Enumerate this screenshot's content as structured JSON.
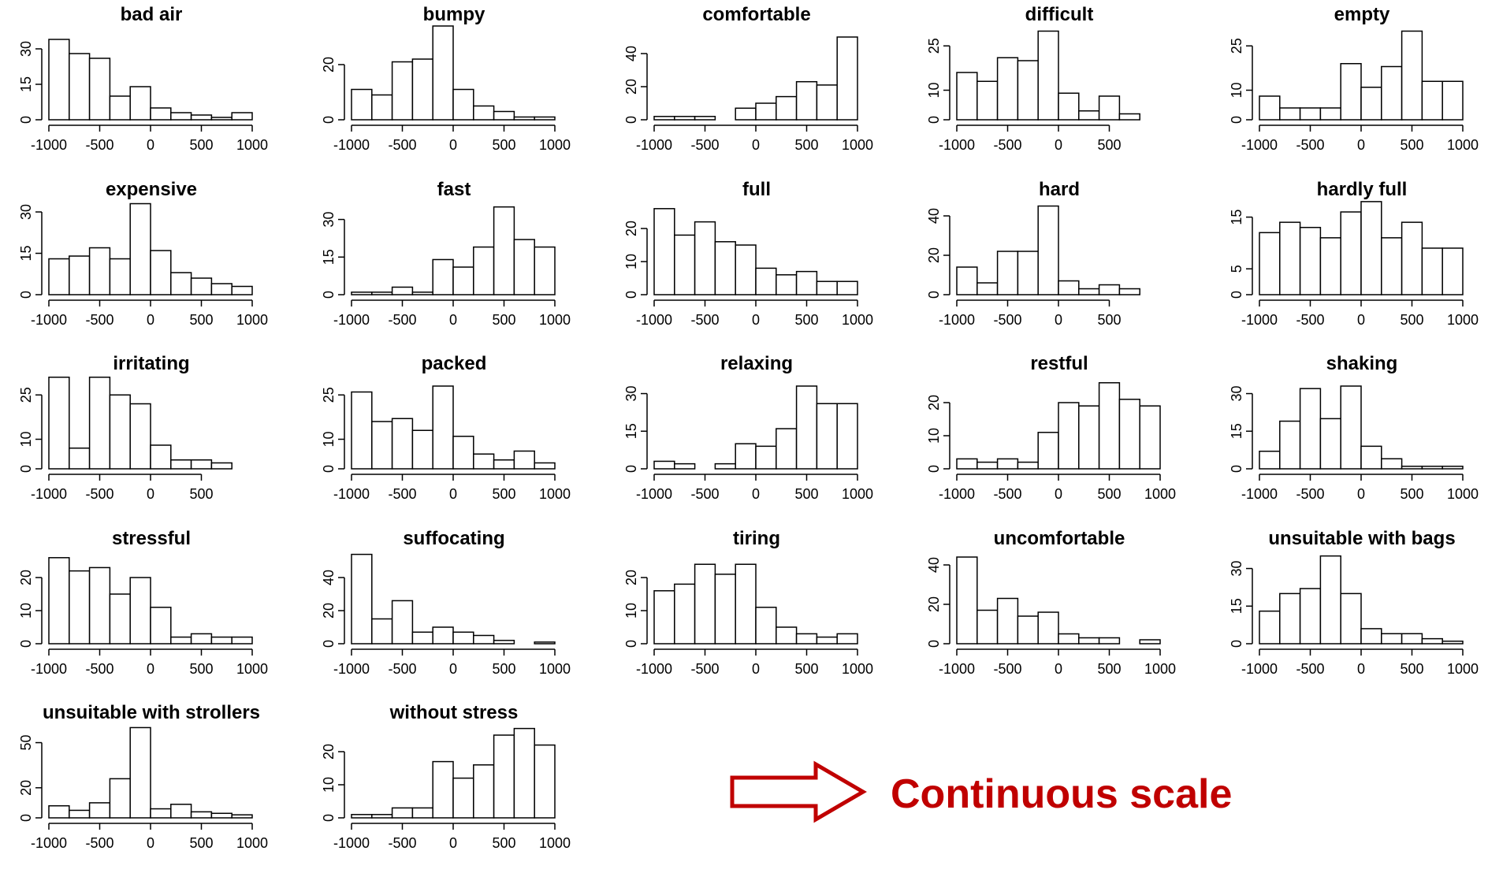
{
  "annotation": {
    "text": "Continuous scale",
    "color": "#c00000"
  },
  "chart_data": [
    {
      "type": "bar",
      "title": "bad air",
      "bin_edges": [
        -1000,
        -800,
        -600,
        -400,
        -200,
        0,
        200,
        400,
        600,
        800,
        1000
      ],
      "values": [
        34,
        28,
        26,
        10,
        14,
        5,
        3,
        2,
        1,
        3
      ],
      "ylim": [
        0,
        35
      ],
      "yticks": [
        0,
        15,
        30
      ],
      "xticks": [
        -1000,
        -500,
        0,
        500,
        1000
      ]
    },
    {
      "type": "bar",
      "title": "bumpy",
      "bin_edges": [
        -1000,
        -800,
        -600,
        -400,
        -200,
        0,
        200,
        400,
        600,
        800,
        1000
      ],
      "values": [
        11,
        9,
        21,
        22,
        34,
        11,
        5,
        3,
        1,
        1
      ],
      "ylim": [
        0,
        30
      ],
      "yticks": [
        0,
        20
      ],
      "xticks": [
        -1000,
        -500,
        0,
        500,
        1000
      ]
    },
    {
      "type": "bar",
      "title": "comfortable",
      "bin_edges": [
        -1000,
        -800,
        -600,
        -400,
        -200,
        0,
        200,
        400,
        600,
        800,
        1000
      ],
      "values": [
        2,
        2,
        2,
        0,
        7,
        10,
        14,
        23,
        21,
        50
      ],
      "ylim": [
        0,
        50
      ],
      "yticks": [
        0,
        20,
        40
      ],
      "xticks": [
        -1000,
        -500,
        0,
        500,
        1000
      ]
    },
    {
      "type": "bar",
      "title": "difficult",
      "bin_edges": [
        -1000,
        -800,
        -600,
        -400,
        -200,
        0,
        200,
        400,
        600,
        800
      ],
      "values": [
        16,
        13,
        21,
        20,
        30,
        9,
        3,
        8,
        2
      ],
      "ylim": [
        0,
        28
      ],
      "yticks": [
        0,
        10,
        25
      ],
      "xticks": [
        -1000,
        -500,
        0,
        500
      ]
    },
    {
      "type": "bar",
      "title": "empty",
      "bin_edges": [
        -1000,
        -800,
        -600,
        -400,
        -200,
        0,
        200,
        400,
        600,
        800,
        1000
      ],
      "values": [
        8,
        4,
        4,
        4,
        19,
        11,
        18,
        30,
        13,
        13
      ],
      "ylim": [
        0,
        28
      ],
      "yticks": [
        0,
        10,
        25
      ],
      "xticks": [
        -1000,
        -500,
        0,
        500,
        1000
      ]
    },
    {
      "type": "bar",
      "title": "expensive",
      "bin_edges": [
        -1000,
        -800,
        -600,
        -400,
        -200,
        0,
        200,
        400,
        600,
        800,
        1000
      ],
      "values": [
        13,
        14,
        17,
        13,
        33,
        16,
        8,
        6,
        4,
        3
      ],
      "ylim": [
        0,
        30
      ],
      "yticks": [
        0,
        15,
        30
      ],
      "xticks": [
        -1000,
        -500,
        0,
        500,
        1000
      ]
    },
    {
      "type": "bar",
      "title": "fast",
      "bin_edges": [
        -1000,
        -800,
        -600,
        -400,
        -200,
        0,
        200,
        400,
        600,
        800,
        1000
      ],
      "values": [
        1,
        1,
        3,
        1,
        14,
        11,
        19,
        35,
        22,
        19
      ],
      "ylim": [
        0,
        33
      ],
      "yticks": [
        0,
        15,
        30
      ],
      "xticks": [
        -1000,
        -500,
        0,
        500,
        1000
      ]
    },
    {
      "type": "bar",
      "title": "full",
      "bin_edges": [
        -1000,
        -800,
        -600,
        -400,
        -200,
        0,
        200,
        400,
        600,
        800,
        1000
      ],
      "values": [
        26,
        18,
        22,
        16,
        15,
        8,
        6,
        7,
        4,
        4
      ],
      "ylim": [
        0,
        25
      ],
      "yticks": [
        0,
        10,
        20
      ],
      "xticks": [
        -1000,
        -500,
        0,
        500,
        1000
      ]
    },
    {
      "type": "bar",
      "title": "hard",
      "bin_edges": [
        -1000,
        -800,
        -600,
        -400,
        -200,
        0,
        200,
        400,
        600,
        800
      ],
      "values": [
        14,
        6,
        22,
        22,
        45,
        7,
        3,
        5,
        3
      ],
      "ylim": [
        0,
        42
      ],
      "yticks": [
        0,
        20,
        40
      ],
      "xticks": [
        -1000,
        -500,
        0,
        500
      ]
    },
    {
      "type": "bar",
      "title": "hardly full",
      "bin_edges": [
        -1000,
        -800,
        -600,
        -400,
        -200,
        0,
        200,
        400,
        600,
        800,
        1000
      ],
      "values": [
        12,
        14,
        13,
        11,
        16,
        18,
        11,
        14,
        9,
        9
      ],
      "ylim": [
        0,
        16
      ],
      "yticks": [
        0,
        5,
        15
      ],
      "xticks": [
        -1000,
        -500,
        0,
        500,
        1000
      ]
    },
    {
      "type": "bar",
      "title": "irritating",
      "bin_edges": [
        -1000,
        -800,
        -600,
        -400,
        -200,
        0,
        200,
        400,
        600,
        800
      ],
      "values": [
        31,
        7,
        31,
        25,
        22,
        8,
        3,
        3,
        2
      ],
      "ylim": [
        0,
        28
      ],
      "yticks": [
        0,
        10,
        25
      ],
      "xticks": [
        -1000,
        -500,
        0,
        500
      ]
    },
    {
      "type": "bar",
      "title": "packed",
      "bin_edges": [
        -1000,
        -800,
        -600,
        -400,
        -200,
        0,
        200,
        400,
        600,
        800,
        1000
      ],
      "values": [
        26,
        16,
        17,
        13,
        28,
        11,
        5,
        3,
        6,
        2
      ],
      "ylim": [
        0,
        28
      ],
      "yticks": [
        0,
        10,
        25
      ],
      "xticks": [
        -1000,
        -500,
        0,
        500,
        1000
      ]
    },
    {
      "type": "bar",
      "title": "relaxing",
      "bin_edges": [
        -1000,
        -800,
        -600,
        -400,
        -200,
        0,
        200,
        400,
        600,
        800,
        1000
      ],
      "values": [
        3,
        2,
        0,
        2,
        10,
        9,
        16,
        33,
        26,
        26
      ],
      "ylim": [
        0,
        33
      ],
      "yticks": [
        0,
        15,
        30
      ],
      "xticks": [
        -1000,
        -500,
        0,
        500,
        1000
      ]
    },
    {
      "type": "bar",
      "title": "restful",
      "bin_edges": [
        -1000,
        -800,
        -600,
        -400,
        -200,
        0,
        200,
        400,
        600,
        800,
        1000
      ],
      "values": [
        3,
        2,
        3,
        2,
        11,
        20,
        19,
        26,
        21,
        19
      ],
      "ylim": [
        0,
        25
      ],
      "yticks": [
        0,
        10,
        20
      ],
      "xticks": [
        -1000,
        -500,
        0,
        500,
        1000
      ]
    },
    {
      "type": "bar",
      "title": "shaking",
      "bin_edges": [
        -1000,
        -800,
        -600,
        -400,
        -200,
        0,
        200,
        400,
        600,
        800,
        1000
      ],
      "values": [
        7,
        19,
        32,
        20,
        33,
        9,
        4,
        1,
        1,
        1
      ],
      "ylim": [
        0,
        33
      ],
      "yticks": [
        0,
        15,
        30
      ],
      "xticks": [
        -1000,
        -500,
        0,
        500,
        1000
      ]
    },
    {
      "type": "bar",
      "title": "stressful",
      "bin_edges": [
        -1000,
        -800,
        -600,
        -400,
        -200,
        0,
        200,
        400,
        600,
        800,
        1000
      ],
      "values": [
        26,
        22,
        23,
        15,
        20,
        11,
        2,
        3,
        2,
        2
      ],
      "ylim": [
        0,
        25
      ],
      "yticks": [
        0,
        10,
        20
      ],
      "xticks": [
        -1000,
        -500,
        0,
        500,
        1000
      ]
    },
    {
      "type": "bar",
      "title": "suffocating",
      "bin_edges": [
        -1000,
        -800,
        -600,
        -400,
        -200,
        0,
        200,
        400,
        600,
        800,
        1000
      ],
      "values": [
        54,
        15,
        26,
        7,
        10,
        7,
        5,
        2,
        0,
        1
      ],
      "ylim": [
        0,
        50
      ],
      "yticks": [
        0,
        20,
        40
      ],
      "xticks": [
        -1000,
        -500,
        0,
        500,
        1000
      ]
    },
    {
      "type": "bar",
      "title": "tiring",
      "bin_edges": [
        -1000,
        -800,
        -600,
        -400,
        -200,
        0,
        200,
        400,
        600,
        800,
        1000
      ],
      "values": [
        16,
        18,
        24,
        21,
        24,
        11,
        5,
        3,
        2,
        3
      ],
      "ylim": [
        0,
        25
      ],
      "yticks": [
        0,
        10,
        20
      ],
      "xticks": [
        -1000,
        -500,
        0,
        500,
        1000
      ]
    },
    {
      "type": "bar",
      "title": "uncomfortable",
      "bin_edges": [
        -1000,
        -800,
        -600,
        -400,
        -200,
        0,
        200,
        400,
        600,
        800,
        1000
      ],
      "values": [
        44,
        17,
        23,
        14,
        16,
        5,
        3,
        3,
        0,
        2
      ],
      "ylim": [
        0,
        42
      ],
      "yticks": [
        0,
        20,
        40
      ],
      "xticks": [
        -1000,
        -500,
        0,
        500,
        1000
      ]
    },
    {
      "type": "bar",
      "title": "unsuitable with bags",
      "bin_edges": [
        -1000,
        -800,
        -600,
        -400,
        -200,
        0,
        200,
        400,
        600,
        800,
        1000
      ],
      "values": [
        13,
        20,
        22,
        35,
        20,
        6,
        4,
        4,
        2,
        1
      ],
      "ylim": [
        0,
        33
      ],
      "yticks": [
        0,
        15,
        30
      ],
      "xticks": [
        -1000,
        -500,
        0,
        500,
        1000
      ]
    },
    {
      "type": "bar",
      "title": "unsuitable with strollers",
      "bin_edges": [
        -1000,
        -800,
        -600,
        -400,
        -200,
        0,
        200,
        400,
        600,
        800,
        1000
      ],
      "values": [
        8,
        5,
        10,
        26,
        60,
        6,
        9,
        4,
        3,
        2
      ],
      "ylim": [
        0,
        55
      ],
      "yticks": [
        0,
        20,
        50
      ],
      "xticks": [
        -1000,
        -500,
        0,
        500,
        1000
      ]
    },
    {
      "type": "bar",
      "title": "without stress",
      "bin_edges": [
        -1000,
        -800,
        -600,
        -400,
        -200,
        0,
        200,
        400,
        600,
        800,
        1000
      ],
      "values": [
        1,
        1,
        3,
        3,
        17,
        12,
        16,
        25,
        27,
        22
      ],
      "ylim": [
        0,
        25
      ],
      "yticks": [
        0,
        10,
        20
      ],
      "xticks": [
        -1000,
        -500,
        0,
        500,
        1000
      ]
    }
  ]
}
